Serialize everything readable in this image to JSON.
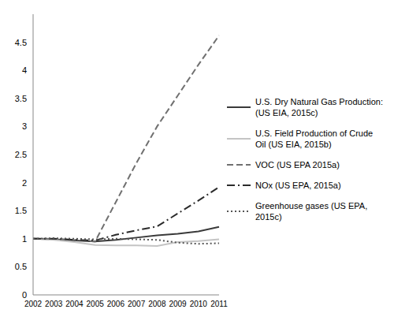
{
  "chart_data": {
    "type": "line",
    "categories": [
      "2002",
      "2003",
      "2004",
      "2005",
      "2006",
      "2007",
      "2008",
      "2009",
      "2010",
      "2011"
    ],
    "series": [
      {
        "name": "U.S. Dry Natural Gas Production: (US EIA, 2015c)",
        "color": "#3a3a3a",
        "line_style": "solid",
        "values": [
          1,
          0.99,
          0.97,
          0.95,
          0.98,
          1.02,
          1.06,
          1.09,
          1.13,
          1.21
        ]
      },
      {
        "name": "U.S. Field Production of Crude Oil (US EIA, 2015b)",
        "color": "#c4c4c4",
        "line_style": "solid",
        "values": [
          1,
          0.98,
          0.94,
          0.89,
          0.88,
          0.88,
          0.87,
          0.94,
          0.96,
          0.99
        ]
      },
      {
        "name": "VOC (US EPA 2015a)",
        "color": "#707070",
        "line_style": "dashed",
        "values": [
          1,
          1,
          0.98,
          0.95,
          1.65,
          2.35,
          3.0,
          3.55,
          4.1,
          4.62
        ]
      },
      {
        "name": "NOx (US EPA, 2015a)",
        "color": "#2b2b2b",
        "line_style": "dashdot",
        "values": [
          1,
          1,
          0.98,
          0.97,
          1.07,
          1.15,
          1.22,
          1.45,
          1.68,
          1.92
        ]
      },
      {
        "name": "Greenhouse gases (US EPA, 2015c)",
        "color": "#555555",
        "line_style": "dotted",
        "values": [
          1,
          1.01,
          1,
          0.99,
          1,
          0.99,
          0.98,
          0.93,
          0.91,
          0.92
        ]
      }
    ],
    "ylim": [
      0,
      5
    ],
    "yticks": [
      0,
      0.5,
      1,
      1.5,
      2,
      2.5,
      3,
      3.5,
      4,
      4.5
    ],
    "grid": false,
    "legend": "right"
  }
}
